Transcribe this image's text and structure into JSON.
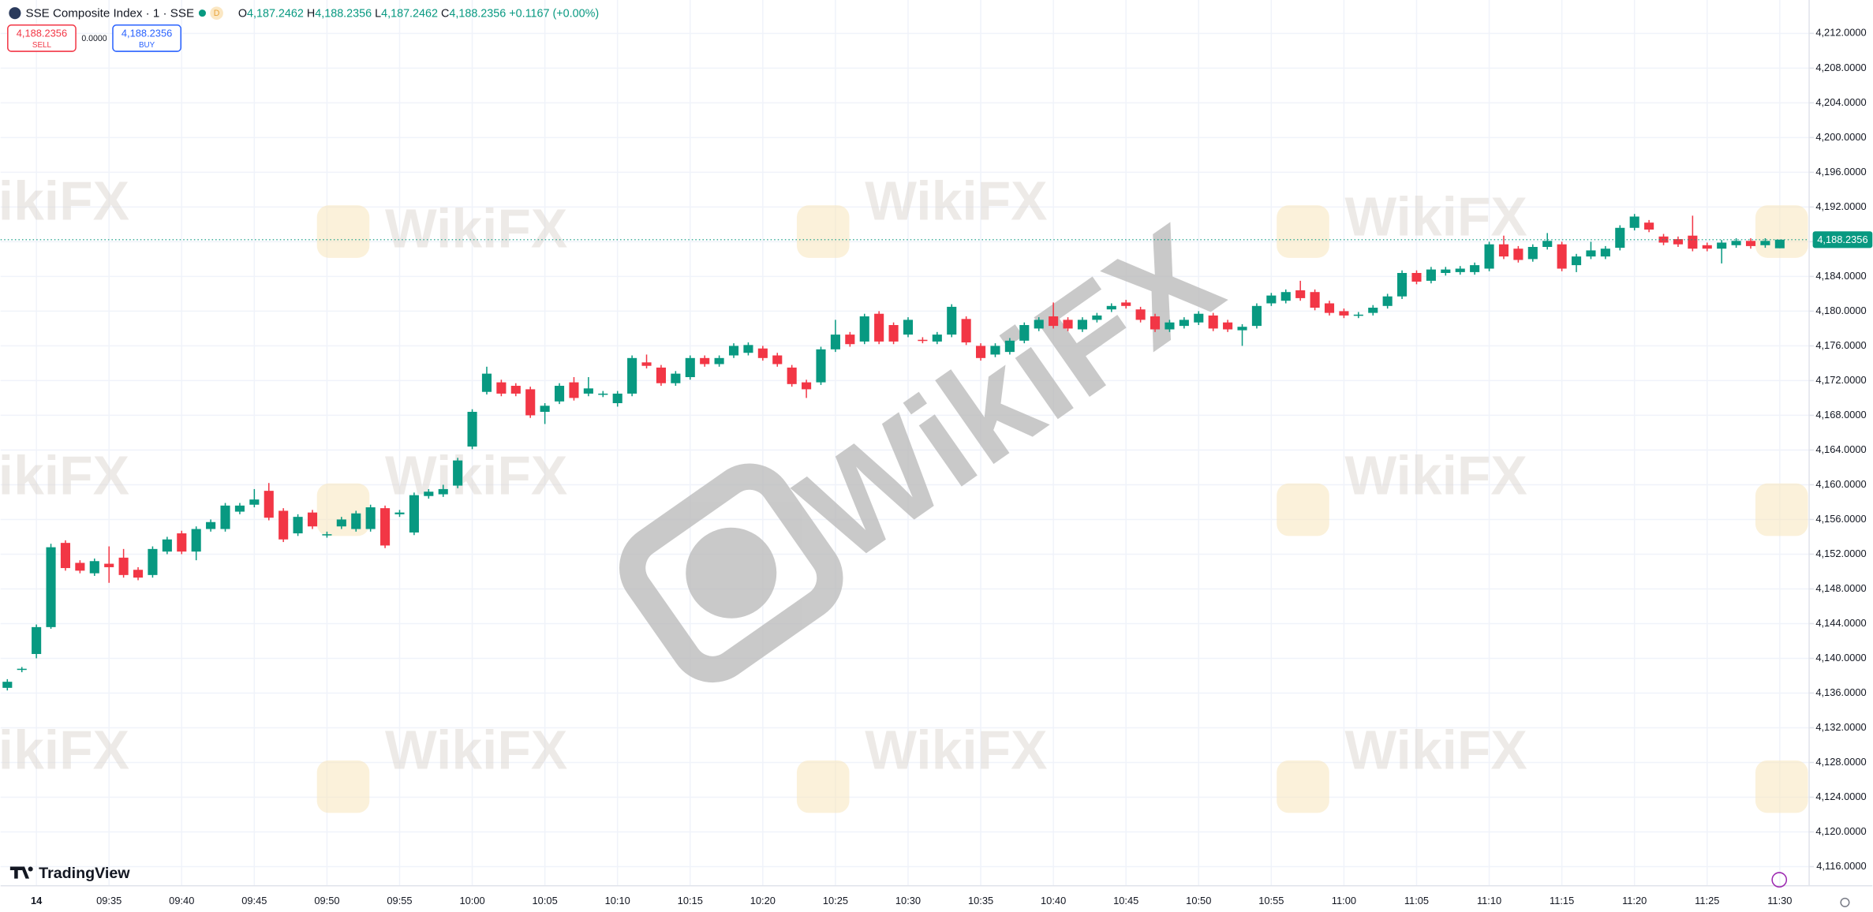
{
  "header": {
    "symbol": "SSE Composite Index · 1 · SSE",
    "badge": "D",
    "ohlc": [
      {
        "label": "O",
        "value": "4,187.2462"
      },
      {
        "label": "H",
        "value": "4,188.2356"
      },
      {
        "label": "L",
        "value": "4,187.2462"
      },
      {
        "label": "C",
        "value": "4,188.2356"
      }
    ],
    "change": "+0.1167 (+0.00%)"
  },
  "trade": {
    "sell_price": "4,188.2356",
    "sell": "SELL",
    "spread": "0.0000",
    "buy_price": "4,188.2356",
    "buy": "BUY"
  },
  "watermark": "WikiFX",
  "brand": "TradingView",
  "chart_data": {
    "type": "candlestick",
    "categories": [
      null,
      null,
      "14",
      null,
      null,
      null,
      null,
      "09:35",
      null,
      null,
      null,
      null,
      "09:40",
      null,
      null,
      null,
      null,
      "09:45",
      null,
      null,
      null,
      null,
      "09:50",
      null,
      null,
      null,
      null,
      "09:55",
      null,
      null,
      null,
      null,
      "10:00",
      null,
      null,
      null,
      null,
      "10:05",
      null,
      null,
      null,
      null,
      "10:10",
      null,
      null,
      null,
      null,
      "10:15",
      null,
      null,
      null,
      null,
      "10:20",
      null,
      null,
      null,
      null,
      "10:25",
      null,
      null,
      null,
      null,
      "10:30",
      null,
      null,
      null,
      null,
      "10:35",
      null,
      null,
      null,
      null,
      "10:40",
      null,
      null,
      null,
      null,
      "10:45",
      null,
      null,
      null,
      null,
      "10:50",
      null,
      null,
      null,
      null,
      "10:55",
      null,
      null,
      null,
      null,
      "11:00",
      null,
      null,
      null,
      null,
      "11:05",
      null,
      null,
      null,
      null,
      "11:10",
      null,
      null,
      null,
      null,
      "11:15",
      null,
      null,
      null,
      null,
      "11:20",
      null,
      null,
      null,
      null,
      "11:25",
      null,
      null,
      null,
      null,
      "11:30"
    ],
    "open": [
      4136.6,
      4138.7,
      4140.5,
      4143.6,
      4153.3,
      4151.0,
      4149.8,
      4150.9,
      4151.6,
      4150.2,
      4149.6,
      4152.3,
      4154.4,
      4152.3,
      4154.9,
      4154.9,
      4156.9,
      4157.7,
      4159.3,
      4157.0,
      4154.4,
      4156.8,
      4154.2,
      4155.2,
      4154.9,
      4154.9,
      4157.3,
      4156.6,
      4154.5,
      4158.7,
      4158.9,
      4159.9,
      4164.4,
      4170.7,
      4171.8,
      4171.4,
      4171.0,
      4168.4,
      4169.6,
      4171.8,
      4170.5,
      4170.4,
      4169.4,
      4170.5,
      4174.1,
      4173.5,
      4171.7,
      4172.4,
      4174.6,
      4173.9,
      4174.9,
      4175.2,
      4175.7,
      4174.9,
      4173.5,
      4171.8,
      4171.8,
      4175.6,
      4177.3,
      4176.5,
      4179.7,
      4178.4,
      4177.3,
      4176.7,
      4176.5,
      4177.3,
      4179.1,
      4176.0,
      4175.0,
      4175.3,
      4176.6,
      4178.0,
      4179.4,
      4179.0,
      4177.9,
      4179.0,
      4180.2,
      4181.0,
      4180.2,
      4179.4,
      4177.9,
      4178.3,
      4178.7,
      4179.5,
      4178.7,
      4177.8,
      4178.3,
      4180.9,
      4181.2,
      4182.4,
      4182.2,
      4180.9,
      4180.0,
      4179.5,
      4179.8,
      4180.6,
      4181.7,
      4184.4,
      4183.5,
      4184.4,
      4184.5,
      4184.5,
      4184.9,
      4187.7,
      4187.2,
      4186.0,
      4187.4,
      4187.7,
      4185.3,
      4186.3,
      4186.3,
      4187.3,
      4189.6,
      4190.2,
      4188.6,
      4188.3,
      4188.7,
      4187.6,
      4187.2,
      4187.6,
      4188.1,
      4187.6,
      4187.2462
    ],
    "high": [
      4137.6,
      4139.0,
      4143.9,
      4153.2,
      4153.6,
      4151.3,
      4151.5,
      4152.9,
      4152.6,
      4150.5,
      4152.9,
      4154.0,
      4154.7,
      4155.2,
      4156.0,
      4157.9,
      4157.9,
      4159.5,
      4160.2,
      4157.3,
      4156.6,
      4157.1,
      4154.6,
      4156.3,
      4157.0,
      4157.7,
      4157.6,
      4157.1,
      4159.1,
      4159.5,
      4160.0,
      4163.1,
      4168.7,
      4173.6,
      4172.1,
      4171.7,
      4171.3,
      4169.4,
      4171.7,
      4172.4,
      4172.4,
      4170.8,
      4170.8,
      4174.9,
      4175.0,
      4173.8,
      4173.1,
      4174.9,
      4174.9,
      4174.9,
      4176.3,
      4176.4,
      4176.0,
      4175.2,
      4173.8,
      4172.1,
      4175.9,
      4179.0,
      4177.6,
      4179.7,
      4180.0,
      4178.7,
      4179.3,
      4177.0,
      4177.6,
      4180.8,
      4179.4,
      4176.3,
      4176.3,
      4176.9,
      4178.7,
      4179.3,
      4181.0,
      4179.3,
      4179.3,
      4179.8,
      4180.9,
      4181.3,
      4180.5,
      4179.7,
      4179.0,
      4179.3,
      4180.0,
      4179.8,
      4179.0,
      4178.5,
      4180.9,
      4182.1,
      4182.5,
      4183.5,
      4182.5,
      4181.2,
      4180.3,
      4179.9,
      4180.7,
      4182.0,
      4184.7,
      4184.7,
      4185.1,
      4185.1,
      4185.2,
      4185.6,
      4188.0,
      4188.7,
      4187.5,
      4187.7,
      4189.0,
      4188.0,
      4186.6,
      4188.0,
      4187.5,
      4189.9,
      4191.2,
      4190.5,
      4188.9,
      4188.6,
      4191.0,
      4187.9,
      4188.2,
      4188.4,
      4188.4,
      4188.4,
      4188.2356
    ],
    "low": [
      4136.3,
      4138.4,
      4140.0,
      4143.4,
      4150.1,
      4149.8,
      4149.5,
      4148.7,
      4149.3,
      4149.0,
      4149.3,
      4152.0,
      4152.0,
      4151.3,
      4154.6,
      4154.6,
      4156.6,
      4157.4,
      4155.9,
      4153.4,
      4154.1,
      4154.9,
      4153.9,
      4154.9,
      4154.6,
      4154.6,
      4152.7,
      4156.3,
      4154.2,
      4158.4,
      4158.6,
      4159.6,
      4164.1,
      4170.4,
      4170.2,
      4170.2,
      4167.7,
      4167.0,
      4169.3,
      4169.7,
      4170.2,
      4170.1,
      4169.0,
      4170.2,
      4173.4,
      4171.4,
      4171.4,
      4172.1,
      4173.6,
      4173.6,
      4174.6,
      4174.9,
      4174.3,
      4173.6,
      4171.3,
      4170.0,
      4171.5,
      4175.3,
      4175.9,
      4176.2,
      4176.2,
      4176.2,
      4177.0,
      4176.3,
      4176.2,
      4177.0,
      4176.1,
      4174.3,
      4174.7,
      4175.0,
      4176.3,
      4177.7,
      4178.0,
      4177.7,
      4177.6,
      4178.7,
      4179.9,
      4180.3,
      4178.7,
      4177.6,
      4177.6,
      4178.0,
      4178.4,
      4177.7,
      4177.6,
      4176.0,
      4178.0,
      4180.6,
      4180.9,
      4181.2,
      4180.1,
      4179.5,
      4179.2,
      4179.2,
      4179.5,
      4180.3,
      4181.4,
      4183.1,
      4183.2,
      4184.1,
      4184.2,
      4184.2,
      4184.6,
      4186.0,
      4185.6,
      4185.7,
      4187.1,
      4184.6,
      4184.5,
      4186.0,
      4186.0,
      4187.0,
      4189.3,
      4189.1,
      4187.6,
      4187.4,
      4186.9,
      4186.9,
      4185.5,
      4187.3,
      4187.2,
      4187.3,
      4187.2462
    ],
    "close": [
      4137.3,
      4138.8,
      4143.6,
      4152.8,
      4150.4,
      4150.1,
      4151.2,
      4150.5,
      4149.6,
      4149.3,
      4152.6,
      4153.7,
      4152.3,
      4154.9,
      4155.7,
      4157.6,
      4157.6,
      4158.3,
      4156.2,
      4153.7,
      4156.3,
      4155.2,
      4154.3,
      4156.0,
      4156.7,
      4157.4,
      4153.0,
      4156.8,
      4158.8,
      4159.2,
      4159.5,
      4162.8,
      4168.4,
      4172.8,
      4170.5,
      4170.5,
      4168.0,
      4169.1,
      4171.4,
      4170.0,
      4171.1,
      4170.5,
      4170.5,
      4174.6,
      4173.7,
      4171.7,
      4172.8,
      4174.6,
      4173.9,
      4174.6,
      4176.0,
      4176.1,
      4174.6,
      4173.9,
      4171.6,
      4171.0,
      4175.6,
      4177.3,
      4176.2,
      4179.4,
      4176.5,
      4176.5,
      4179.0,
      4176.6,
      4177.3,
      4180.5,
      4176.4,
      4174.6,
      4176.0,
      4176.6,
      4178.4,
      4179.0,
      4178.3,
      4178.0,
      4179.0,
      4179.5,
      4180.6,
      4180.6,
      4179.0,
      4177.9,
      4178.7,
      4179.0,
      4179.7,
      4178.0,
      4177.9,
      4178.2,
      4180.6,
      4181.8,
      4182.2,
      4181.5,
      4180.4,
      4179.8,
      4179.5,
      4179.6,
      4180.4,
      4181.7,
      4184.4,
      4183.4,
      4184.8,
      4184.8,
      4184.9,
      4185.3,
      4187.7,
      4186.3,
      4185.9,
      4187.4,
      4188.1,
      4184.9,
      4186.3,
      4187.0,
      4187.2,
      4189.6,
      4190.9,
      4189.4,
      4187.9,
      4187.7,
      4187.2,
      4187.2,
      4187.9,
      4188.1,
      4187.5,
      4188.1,
      4188.2356
    ],
    "up_color": "#089981",
    "down_color": "#f23645",
    "ylim": [
      4113.8,
      4215.85
    ],
    "yticks": [
      {
        "value": 4116,
        "label": "4,116.0000"
      },
      {
        "value": 4120,
        "label": "4,120.0000"
      },
      {
        "value": 4124,
        "label": "4,124.0000"
      },
      {
        "value": 4128,
        "label": "4,128.0000"
      },
      {
        "value": 4132,
        "label": "4,132.0000"
      },
      {
        "value": 4136,
        "label": "4,136.0000"
      },
      {
        "value": 4140,
        "label": "4,140.0000"
      },
      {
        "value": 4144,
        "label": "4,144.0000"
      },
      {
        "value": 4148,
        "label": "4,148.0000"
      },
      {
        "value": 4152,
        "label": "4,152.0000"
      },
      {
        "value": 4156,
        "label": "4,156.0000"
      },
      {
        "value": 4160,
        "label": "4,160.0000"
      },
      {
        "value": 4164,
        "label": "4,164.0000"
      },
      {
        "value": 4168,
        "label": "4,168.0000"
      },
      {
        "value": 4172,
        "label": "4,172.0000"
      },
      {
        "value": 4176,
        "label": "4,176.0000"
      },
      {
        "value": 4180,
        "label": "4,180.0000"
      },
      {
        "value": 4184,
        "label": "4,184.0000"
      },
      {
        "value": 4188,
        "label": "4,188.0000"
      },
      {
        "value": 4192,
        "label": "4,192.0000"
      },
      {
        "value": 4196,
        "label": "4,196.0000"
      },
      {
        "value": 4200,
        "label": "4,200.0000"
      },
      {
        "value": 4204,
        "label": "4,204.0000"
      },
      {
        "value": 4208,
        "label": "4,208.0000"
      },
      {
        "value": 4212,
        "label": "4,212.0000"
      }
    ],
    "grid": true,
    "last_price": {
      "value": 4188.2356,
      "label": "4,188.2356"
    }
  }
}
